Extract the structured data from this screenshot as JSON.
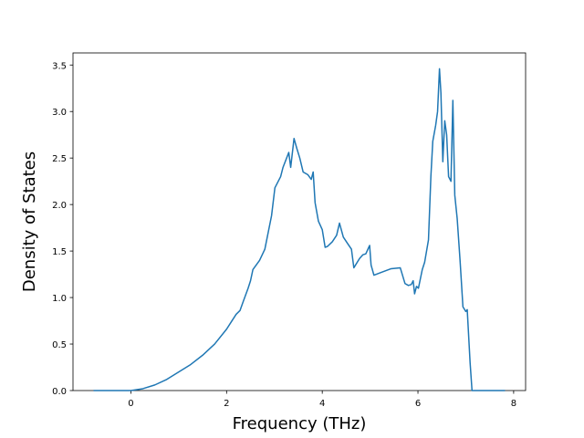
{
  "chart_data": {
    "type": "line",
    "xlabel": "Frequency (THz)",
    "ylabel": "Density of States",
    "xlim": [
      -1.21,
      8.25
    ],
    "ylim": [
      0,
      3.63
    ],
    "xticks": [
      0,
      2,
      4,
      6,
      8
    ],
    "yticks": [
      {
        "value": 0,
        "label": "0.0"
      },
      {
        "value": 0.5,
        "label": "0.5"
      },
      {
        "value": 1,
        "label": "1.0"
      },
      {
        "value": 1.5,
        "label": "1.5"
      },
      {
        "value": 2,
        "label": "2.0"
      },
      {
        "value": 2.5,
        "label": "2.5"
      },
      {
        "value": 3,
        "label": "3.0"
      },
      {
        "value": 3.5,
        "label": "3.5"
      }
    ],
    "color": "#1f77b4",
    "x": [
      -0.78,
      0,
      0.25,
      0.5,
      0.75,
      1,
      1.25,
      1.5,
      1.75,
      2,
      2.1,
      2.2,
      2.28,
      2.35,
      2.45,
      2.5,
      2.55,
      2.69,
      2.8,
      2.94,
      3.01,
      3.13,
      3.18,
      3.3,
      3.34,
      3.41,
      3.47,
      3.53,
      3.6,
      3.7,
      3.77,
      3.81,
      3.85,
      3.92,
      4.0,
      4.06,
      4.11,
      4.21,
      4.3,
      4.36,
      4.44,
      4.53,
      4.61,
      4.66,
      4.78,
      4.85,
      4.91,
      4.99,
      5.02,
      5.08,
      5.23,
      5.44,
      5.63,
      5.73,
      5.8,
      5.86,
      5.9,
      5.93,
      5.97,
      6.01,
      6.09,
      6.14,
      6.22,
      6.27,
      6.31,
      6.37,
      6.41,
      6.45,
      6.48,
      6.52,
      6.56,
      6.6,
      6.64,
      6.69,
      6.73,
      6.77,
      6.82,
      6.88,
      6.94,
      7.0,
      7.03,
      7.09,
      7.13,
      7.82
    ],
    "values": [
      0,
      0,
      0.02,
      0.06,
      0.12,
      0.2,
      0.28,
      0.38,
      0.5,
      0.66,
      0.74,
      0.82,
      0.86,
      0.96,
      1.1,
      1.18,
      1.3,
      1.4,
      1.52,
      1.88,
      2.18,
      2.3,
      2.4,
      2.56,
      2.4,
      2.71,
      2.6,
      2.5,
      2.35,
      2.32,
      2.27,
      2.35,
      2.02,
      1.82,
      1.73,
      1.54,
      1.55,
      1.6,
      1.67,
      1.8,
      1.65,
      1.58,
      1.52,
      1.32,
      1.42,
      1.46,
      1.47,
      1.56,
      1.35,
      1.24,
      1.27,
      1.31,
      1.32,
      1.15,
      1.13,
      1.14,
      1.18,
      1.04,
      1.12,
      1.1,
      1.3,
      1.38,
      1.62,
      2.3,
      2.68,
      2.85,
      3.0,
      3.46,
      3.2,
      2.46,
      2.9,
      2.75,
      2.3,
      2.25,
      3.12,
      2.1,
      1.85,
      1.4,
      0.9,
      0.85,
      0.87,
      0.3,
      0,
      0
    ]
  }
}
